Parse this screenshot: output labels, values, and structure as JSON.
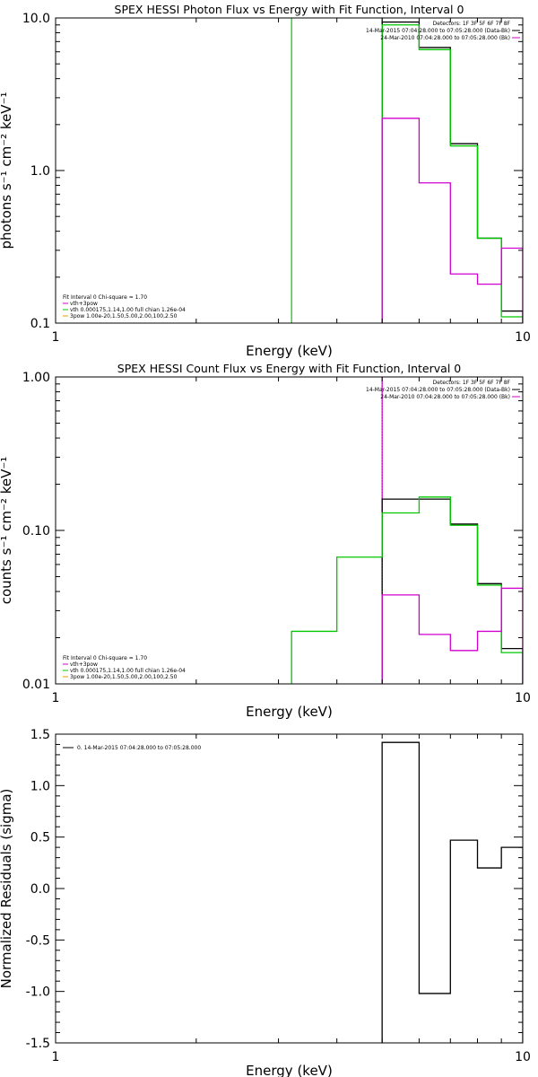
{
  "chart_data": [
    {
      "type": "line",
      "title": "SPEX HESSI Photon Flux vs Energy with Fit Function, Interval 0",
      "xlabel": "Energy (keV)",
      "ylabel": "photons s⁻¹ cm⁻² keV⁻¹",
      "xscale": "log",
      "yscale": "log",
      "xlim": [
        1,
        10
      ],
      "ylim": [
        0.1,
        10
      ],
      "xticks": [
        {
          "v": 1,
          "label": "1"
        },
        {
          "v": 10,
          "label": "10"
        }
      ],
      "yticks": [
        {
          "v": 0.1,
          "label": "0.1"
        },
        {
          "v": 1,
          "label": "1.0"
        },
        {
          "v": 10,
          "label": "10.0"
        }
      ],
      "legend_top": [
        "Detectors: 1F 3F 5F 6F 7F 8F",
        "14-Mar-2015 07:04:28.000 to 07:05:28.000 (Data-Bk)",
        "24-Mar-2010 07:04:28.000 to 07:05:28.000 (Bk)"
      ],
      "legend_bottom": [
        "Fit Interval 0   Chi-square = 1.70",
        "vth+3pow",
        "vth 0.000175,1.14,1.00  full chian 1.26e-04",
        "3pow 1.00e-20,1.50,5.00,2.00,100,2.50"
      ],
      "series": [
        {
          "name": "Data-Bk",
          "color": "#000000",
          "edges": [
            5,
            6,
            7,
            8,
            9,
            10
          ],
          "values": [
            9.4,
            6.4,
            1.5,
            0.36,
            0.12
          ]
        },
        {
          "name": "vth+3pow",
          "color": "#00c800",
          "edges": [
            5,
            6,
            7,
            8,
            9,
            10
          ],
          "values": [
            9.0,
            6.2,
            1.45,
            0.36,
            0.11
          ]
        },
        {
          "name": "Bk",
          "color": "#d000d0",
          "edges": [
            5,
            6,
            7,
            8,
            9,
            10
          ],
          "values": [
            2.2,
            0.83,
            0.21,
            0.18,
            0.31
          ]
        }
      ],
      "vlines": [
        {
          "x": 3.2,
          "color": "#00c800",
          "style": "solid"
        },
        {
          "x": 5.0,
          "color": "#d000d0",
          "style": "solid"
        },
        {
          "x": 5.0,
          "color": "#00c800",
          "style": "solid",
          "stop": 0.5
        }
      ]
    },
    {
      "type": "line",
      "title": "SPEX HESSI Count Flux vs Energy with Fit Function, Interval 0",
      "xlabel": "Energy (keV)",
      "ylabel": "counts s⁻¹ cm⁻² keV⁻¹",
      "xscale": "log",
      "yscale": "log",
      "xlim": [
        1,
        10
      ],
      "ylim": [
        0.01,
        1
      ],
      "xticks": [
        {
          "v": 1,
          "label": "1"
        },
        {
          "v": 10,
          "label": "10"
        }
      ],
      "yticks": [
        {
          "v": 0.01,
          "label": "0.01"
        },
        {
          "v": 0.1,
          "label": "0.10"
        },
        {
          "v": 1,
          "label": "1.00"
        }
      ],
      "legend_top": [
        "Detectors: 1F 3F 5F 6F 7F 8F",
        "14-Mar-2015 07:04:28.000 to 07:05:28.000 (Data-Bk)",
        "24-Mar-2010 07:04:28.000 to 07:05:28.000 (Bk)"
      ],
      "legend_bottom": [
        "Fit Interval 0   Chi-square = 1.70",
        "vth+3pow",
        "vth 0.000175,1.14,1.00  full chian 1.26e-04",
        "3pow 1.00e-20,1.50,5.00,2.00,100,2.50"
      ],
      "series": [
        {
          "name": "Data-Bk",
          "color": "#000000",
          "edges": [
            5,
            6,
            7,
            8,
            9,
            10
          ],
          "values": [
            0.16,
            0.16,
            0.11,
            0.045,
            0.017
          ]
        },
        {
          "name": "vth+3pow",
          "color": "#00c800",
          "edges": [
            3.2,
            4,
            5,
            6,
            7,
            8,
            9,
            10
          ],
          "values": [
            0.022,
            0.067,
            0.13,
            0.165,
            0.108,
            0.044,
            0.016
          ]
        },
        {
          "name": "Bk",
          "color": "#d000d0",
          "edges": [
            5,
            6,
            7,
            8,
            9,
            10
          ],
          "values": [
            0.038,
            0.021,
            0.0165,
            0.022,
            0.042
          ]
        }
      ],
      "vlines": [
        {
          "x": 5.0,
          "color": "#000000",
          "style": "dotted"
        },
        {
          "x": 5.0,
          "color": "#d000d0",
          "style": "solid",
          "stop": 0.6
        }
      ]
    },
    {
      "type": "line",
      "title": "",
      "xlabel": "Energy (keV)",
      "ylabel": "Normalized Residuals (sigma)",
      "xscale": "log",
      "yscale": "linear",
      "xlim": [
        1,
        10
      ],
      "ylim": [
        -1.5,
        1.5
      ],
      "xticks": [
        {
          "v": 1,
          "label": "1"
        },
        {
          "v": 10,
          "label": "10"
        }
      ],
      "yticks": [
        {
          "v": -1.5,
          "label": "-1.5"
        },
        {
          "v": -1.0,
          "label": "-1.0"
        },
        {
          "v": -0.5,
          "label": "-0.5"
        },
        {
          "v": 0.0,
          "label": "0.0"
        },
        {
          "v": 0.5,
          "label": "0.5"
        },
        {
          "v": 1.0,
          "label": "1.0"
        },
        {
          "v": 1.5,
          "label": "1.5"
        }
      ],
      "legend_top": [
        "0. 14-Mar-2015 07:04:28.000 to 07:05:28.000"
      ],
      "legend_bottom": [],
      "series": [
        {
          "name": "0. 14-Mar-2015 07:04:28.000 to 07:05:28.000",
          "color": "#000000",
          "edges": [
            5,
            6,
            7,
            8,
            9,
            10
          ],
          "values": [
            1.42,
            -1.02,
            0.47,
            0.2,
            0.4
          ]
        }
      ],
      "vlines": []
    }
  ]
}
